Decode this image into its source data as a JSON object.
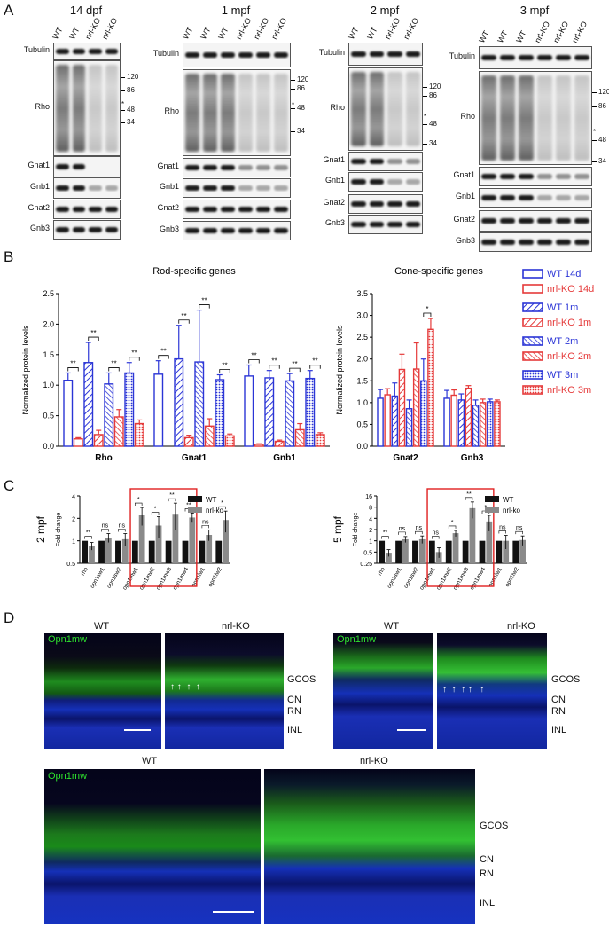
{
  "panels": {
    "A": "A",
    "B": "B",
    "C": "C",
    "D": "D"
  },
  "blots": {
    "p14dpf": {
      "title": "14 dpf",
      "lanes": [
        "WT",
        "WT",
        "nrl-KO",
        "nrl-KO"
      ],
      "rows": [
        "Tubulin",
        "Rho",
        "Gnat1",
        "Gnb1",
        "Gnat2",
        "Gnb3"
      ],
      "mw": [
        "120",
        "86",
        "48",
        "34"
      ],
      "star": "*"
    },
    "p1mpf": {
      "title": "1 mpf",
      "lanes": [
        "WT",
        "WT",
        "WT",
        "nrl-KO",
        "nrl-KO",
        "nrl-KO"
      ],
      "rows": [
        "Tubulin",
        "Rho",
        "Gnat1",
        "Gnb1",
        "Gnat2",
        "Gnb3"
      ],
      "mw": [
        "120",
        "86",
        "48",
        "34"
      ],
      "star": "*"
    },
    "p2mpf": {
      "title": "2 mpf",
      "lanes": [
        "WT",
        "WT",
        "nrl-KO",
        "nrl-KO"
      ],
      "rows": [
        "Tubulin",
        "Rho",
        "Gnat1",
        "Gnb1",
        "Gnat2",
        "Gnb3"
      ],
      "mw": [
        "120",
        "86",
        "48",
        "34"
      ],
      "star": "*"
    },
    "p3mpf": {
      "title": "3 mpf",
      "lanes": [
        "WT",
        "WT",
        "WT",
        "nrl-KO",
        "nrl-KO",
        "nrl-KO"
      ],
      "rows": [
        "Tubulin",
        "Rho",
        "Gnat1",
        "Gnb1",
        "Gnat2",
        "Gnb3"
      ],
      "mw": [
        "120",
        "86",
        "48",
        "34"
      ],
      "star": "*"
    }
  },
  "legendB": {
    "items": [
      {
        "label": "WT 14d",
        "color": "#2b35d6",
        "fill": "open"
      },
      {
        "label": "nrl-KO 14d",
        "color": "#e53a3a",
        "fill": "open"
      },
      {
        "label": "WT 1m",
        "color": "#2b35d6",
        "fill": "hatch"
      },
      {
        "label": "nrl-KO 1m",
        "color": "#e53a3a",
        "fill": "hatch"
      },
      {
        "label": "WT 2m",
        "color": "#2b35d6",
        "fill": "hatch2"
      },
      {
        "label": "nrl-KO 2m",
        "color": "#e53a3a",
        "fill": "hatch2"
      },
      {
        "label": "WT 3m",
        "color": "#2b35d6",
        "fill": "dots"
      },
      {
        "label": "nrl-KO 3m",
        "color": "#e53a3a",
        "fill": "dots"
      }
    ]
  },
  "legendC": {
    "items": [
      {
        "label": "WT",
        "color": "#111111"
      },
      {
        "label": "nrl-ko",
        "color": "#8a8a8a"
      }
    ]
  },
  "chart_data": [
    {
      "type": "bar",
      "title": "Rod-specific genes",
      "ylabel": "Normalized protein levels",
      "ylim": [
        0,
        2.5
      ],
      "yticks": [
        "0.0",
        "0.5",
        "1.0",
        "1.5",
        "2.0",
        "2.5"
      ],
      "categories": [
        "Rho",
        "Gnat1",
        "Gnb1"
      ],
      "series": [
        {
          "name": "WT 14d",
          "values": [
            1.08,
            1.18,
            1.15
          ],
          "err": [
            0.12,
            0.22,
            0.18
          ]
        },
        {
          "name": "nrl-KO 14d",
          "values": [
            0.12,
            0.0,
            0.03
          ],
          "err": [
            0.02,
            0.0,
            0.01
          ]
        },
        {
          "name": "WT 1m",
          "values": [
            1.37,
            1.43,
            1.12
          ],
          "err": [
            0.33,
            0.55,
            0.12
          ]
        },
        {
          "name": "nrl-KO 1m",
          "values": [
            0.19,
            0.14,
            0.08
          ],
          "err": [
            0.07,
            0.04,
            0.02
          ]
        },
        {
          "name": "WT 2m",
          "values": [
            1.02,
            1.38,
            1.07
          ],
          "err": [
            0.18,
            0.85,
            0.12
          ]
        },
        {
          "name": "nrl-KO 2m",
          "values": [
            0.48,
            0.33,
            0.27
          ],
          "err": [
            0.12,
            0.12,
            0.1
          ]
        },
        {
          "name": "WT 3m",
          "values": [
            1.2,
            1.09,
            1.11
          ],
          "err": [
            0.17,
            0.08,
            0.13
          ]
        },
        {
          "name": "nrl-KO 3m",
          "values": [
            0.37,
            0.17,
            0.19
          ],
          "err": [
            0.06,
            0.03,
            0.03
          ]
        }
      ],
      "significance": [
        "**",
        "**",
        "**",
        "**",
        "**",
        "**",
        "**",
        "**",
        "**",
        "**",
        "**",
        "**"
      ]
    },
    {
      "type": "bar",
      "title": "Cone-specific genes",
      "ylabel": "Normalized protein levels",
      "ylim": [
        0,
        3.5
      ],
      "yticks": [
        "0.0",
        "0.5",
        "1.0",
        "1.5",
        "2.0",
        "2.5",
        "3.0",
        "3.5"
      ],
      "categories": [
        "Gnat2",
        "Gnb3"
      ],
      "series": [
        {
          "name": "WT 14d",
          "values": [
            1.1,
            1.1
          ],
          "err": [
            0.2,
            0.18
          ]
        },
        {
          "name": "nrl-KO 14d",
          "values": [
            1.18,
            1.17
          ],
          "err": [
            0.14,
            0.12
          ]
        },
        {
          "name": "WT 1m",
          "values": [
            1.15,
            1.06
          ],
          "err": [
            0.3,
            0.14
          ]
        },
        {
          "name": "nrl-KO 1m",
          "values": [
            1.76,
            1.33
          ],
          "err": [
            0.35,
            0.06
          ]
        },
        {
          "name": "WT 2m",
          "values": [
            0.86,
            0.94
          ],
          "err": [
            0.2,
            0.12
          ]
        },
        {
          "name": "nrl-KO 2m",
          "values": [
            1.77,
            1.0
          ],
          "err": [
            0.6,
            0.08
          ]
        },
        {
          "name": "WT 3m",
          "values": [
            1.5,
            1.02
          ],
          "err": [
            0.5,
            0.06
          ]
        },
        {
          "name": "nrl-KO 3m",
          "values": [
            2.68,
            1.02
          ],
          "err": [
            0.25,
            0.04
          ]
        }
      ],
      "significance": [
        "*"
      ]
    },
    {
      "type": "bar",
      "title": "2 mpf",
      "ylabel": "Fold change",
      "yscale": "log2",
      "ylim": [
        0.5,
        4
      ],
      "yticks": [
        "0.5",
        "1",
        "2",
        "4"
      ],
      "categories": [
        "rho",
        "opn1sw1",
        "opn1sw2",
        "opn1mw1",
        "opn1mw2",
        "opn1mw3",
        "opn1mw4",
        "opn1lw1",
        "opn1lw2"
      ],
      "series": [
        {
          "name": "WT",
          "values": [
            1,
            1,
            1,
            1,
            1,
            1,
            1,
            1,
            1
          ]
        },
        {
          "name": "nrl-ko",
          "values": [
            0.85,
            1.1,
            1.05,
            2.2,
            1.6,
            2.3,
            2.05,
            1.2,
            1.9
          ],
          "err": [
            0.1,
            0.15,
            0.2,
            0.6,
            0.5,
            0.9,
            0.3,
            0.2,
            0.6
          ]
        }
      ],
      "significance": [
        "**",
        "ns",
        "ns",
        "*",
        "*",
        "**",
        "**",
        "ns",
        "*"
      ]
    },
    {
      "type": "bar",
      "title": "5 mpf",
      "ylabel": "Fold change",
      "yscale": "log2",
      "ylim": [
        0.25,
        16
      ],
      "yticks": [
        "0.25",
        "0.5",
        "1",
        "2",
        "4",
        "8",
        "16"
      ],
      "categories": [
        "rho",
        "opn1sw1",
        "opn1sw2",
        "opn1mw1",
        "opn1mw2",
        "opn1mw3",
        "opn1mw4",
        "opn1lw1",
        "opn1lw2"
      ],
      "series": [
        {
          "name": "WT",
          "values": [
            1,
            1,
            1,
            1,
            1,
            1,
            1,
            1,
            1
          ]
        },
        {
          "name": "nrl-ko",
          "values": [
            0.48,
            1.1,
            1.1,
            0.5,
            1.6,
            7.5,
            3.3,
            1.0,
            1.05
          ],
          "err": [
            0.1,
            0.2,
            0.25,
            0.15,
            0.3,
            3.5,
            1.5,
            0.4,
            0.3
          ]
        }
      ],
      "significance": [
        "**",
        "ns",
        "ns",
        "ns",
        "*",
        "**",
        "*",
        "ns",
        "ns"
      ]
    }
  ],
  "micrographs": {
    "top_left": {
      "left_label": "WT",
      "right_label": "nrl-KO",
      "marker": "Opn1mw"
    },
    "top_right": {
      "left_label": "WT",
      "right_label": "nrl-KO",
      "marker": "Opn1mw"
    },
    "bottom": {
      "left_label": "WT",
      "right_label": "nrl-KO",
      "marker": "Opn1mw"
    },
    "layers": [
      "GCOS",
      "CN",
      "RN",
      "INL"
    ]
  }
}
